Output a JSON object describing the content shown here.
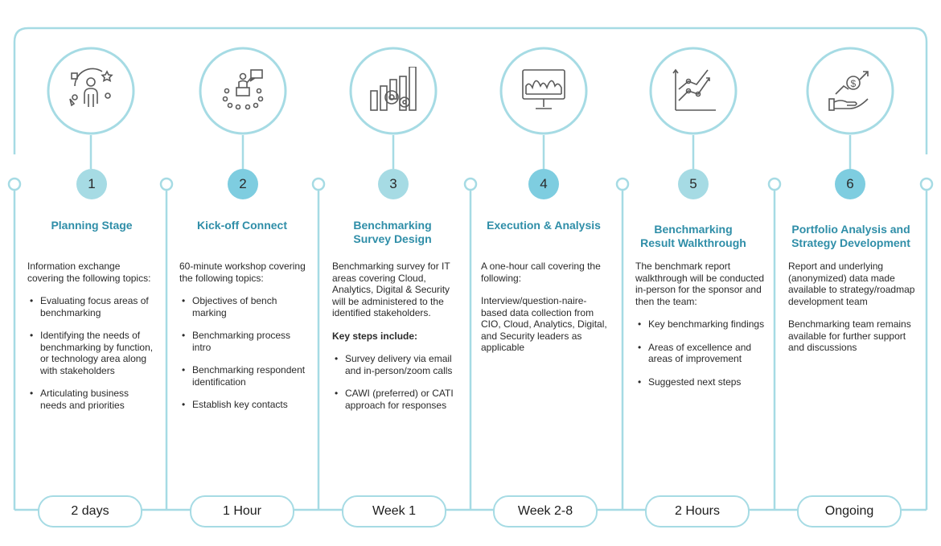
{
  "colors": {
    "line": "#a6dbe4",
    "heading": "#2f8ea8",
    "badge_light": "#a6dbe4",
    "badge_mid": "#7ecde0",
    "icon": "#5a5a5a",
    "text": "#2a2a2a"
  },
  "stages": [
    {
      "number": "1",
      "icon": "person-stakeholders-icon",
      "title_lines": [
        "Planning Stage"
      ],
      "intro": "Information exchange covering the following topics:",
      "bullets": [
        "Evaluating focus areas of benchmarking",
        "Identifying the needs of benchmarking by function, or technology area along with stakeholders",
        "Articulating business needs and priorities"
      ],
      "duration": "2 days"
    },
    {
      "number": "2",
      "icon": "workshop-presentation-icon",
      "title_lines": [
        "Kick-off Connect"
      ],
      "intro": "60-minute workshop covering the following topics:",
      "bullets": [
        "Objectives of bench marking",
        "Benchmarking process intro",
        "Benchmarking respondent identification",
        "Establish key contacts"
      ],
      "duration": "1 Hour"
    },
    {
      "number": "3",
      "icon": "bar-chart-gears-icon",
      "title_lines": [
        "Benchmarking",
        "Survey Design"
      ],
      "intro": "Benchmarking survey for IT areas covering Cloud, Analytics, Digital & Security will be administered to the identified stakeholders.",
      "subheading": "Key steps include:",
      "bullets": [
        "Survey delivery via email and in-person/zoom calls",
        "CAWI (preferred) or CATI approach for responses"
      ],
      "duration": "Week 1"
    },
    {
      "number": "4",
      "icon": "monitor-chart-icon",
      "title_lines": [
        "Execution & Analysis"
      ],
      "intro": "A one-hour call covering the following:",
      "paragraph": "Interview/question-naire-based data collection from CIO, Cloud, Analytics, Digital, and Security leaders as applicable",
      "bullets": [],
      "duration": "Week 2-8"
    },
    {
      "number": "5",
      "icon": "growth-graph-icon",
      "title_lines": [
        "Benchmarking",
        "Result Walkthrough"
      ],
      "intro": "The benchmark report walkthrough will be conducted in-person for the sponsor and then the team:",
      "bullets": [
        "Key benchmarking findings",
        "Areas of excellence and areas of improvement",
        "Suggested next steps"
      ],
      "duration": "2 Hours"
    },
    {
      "number": "6",
      "icon": "hand-money-growth-icon",
      "title_lines": [
        "Portfolio Analysis and",
        "Strategy Development"
      ],
      "intro": "Report and underlying (anonymized) data made available to strategy/roadmap development team",
      "paragraph": "Benchmarking team remains available for further support and discussions",
      "bullets": [],
      "duration": "Ongoing"
    }
  ]
}
